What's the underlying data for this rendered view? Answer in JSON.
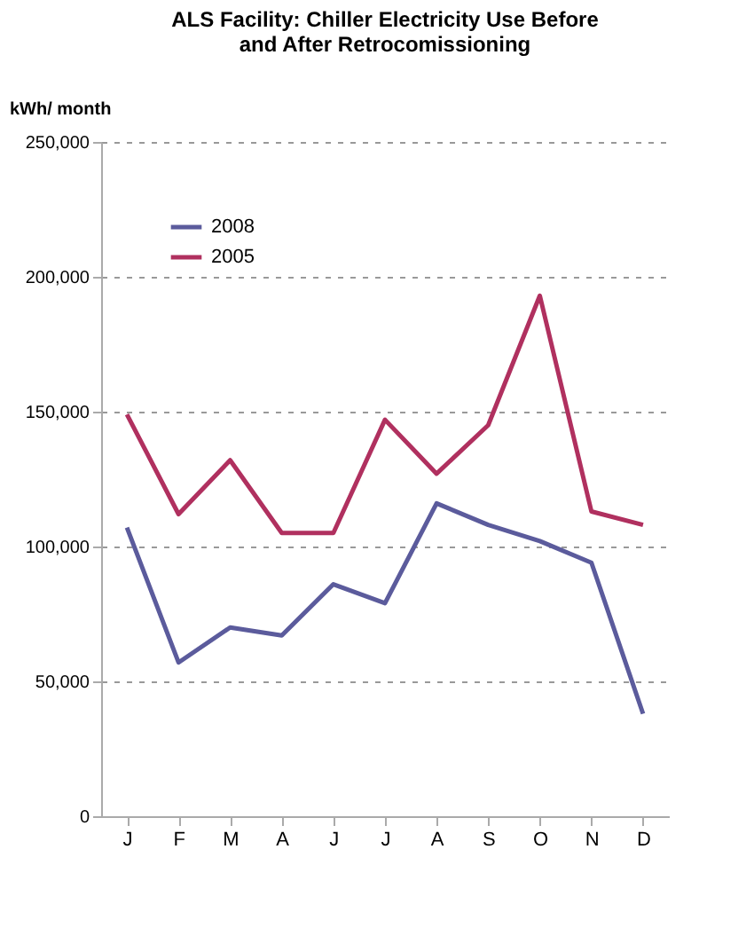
{
  "chart_data": {
    "type": "line",
    "title": [
      "ALS Facility: Chiller Electricity Use Before",
      "and After Retrocomissioning"
    ],
    "ylabel": "kWh/ month",
    "categories": [
      "J",
      "F",
      "M",
      "A",
      "J",
      "J",
      "A",
      "S",
      "O",
      "N",
      "D"
    ],
    "series": [
      {
        "name": "2008",
        "color": "#5b5b9c",
        "values": [
          107000,
          57000,
          70000,
          67000,
          86000,
          79000,
          116000,
          108000,
          102000,
          94000,
          38000
        ]
      },
      {
        "name": "2005",
        "color": "#b0305f",
        "values": [
          149000,
          112000,
          132000,
          105000,
          105000,
          147000,
          127000,
          145000,
          193000,
          113000,
          108000
        ]
      }
    ],
    "ylim": [
      0,
      250000
    ],
    "yticks": [
      0,
      {
        "value": 50000,
        "label": "50,000"
      },
      {
        "value": 100000,
        "label": "100,000"
      },
      {
        "value": 150000,
        "label": "150,000"
      },
      {
        "value": 200000,
        "label": "200,000"
      },
      {
        "value": 250000,
        "label": "250,000"
      }
    ],
    "grid": "y",
    "legend": "top left",
    "line_style": "solid",
    "marker": "none"
  }
}
